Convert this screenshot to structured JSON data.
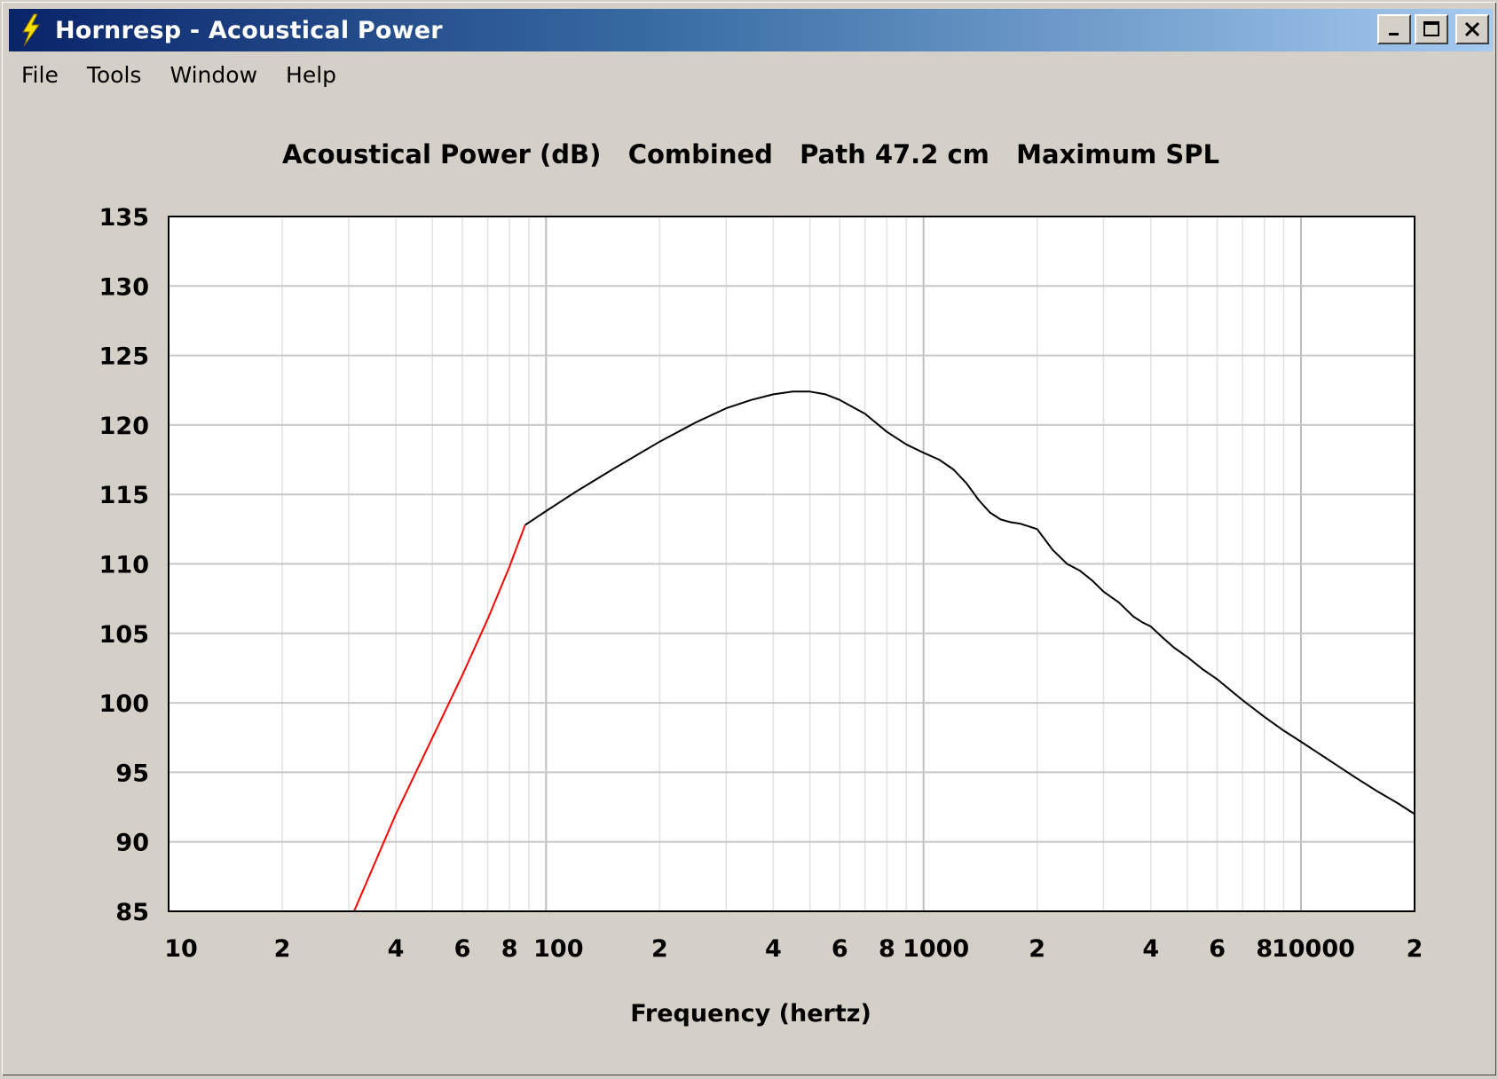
{
  "window": {
    "title": "Hornresp - Acoustical Power",
    "app_icon": "lightning-icon",
    "buttons": {
      "minimize": "minimize-icon",
      "maximize": "maximize-icon",
      "close": "close-icon"
    }
  },
  "menu": {
    "items": [
      "File",
      "Tools",
      "Window",
      "Help"
    ]
  },
  "chart_data": {
    "type": "line",
    "title": "Acoustical Power (dB)   Combined   Path 47.2 cm   Maximum SPL",
    "xlabel": "Frequency (hertz)",
    "ylabel": "",
    "xscale": "log",
    "xlim": [
      10,
      20000
    ],
    "ylim": [
      85,
      135
    ],
    "ytick_labels": [
      "135",
      "130",
      "125",
      "120",
      "115",
      "110",
      "105",
      "100",
      "95",
      "90",
      "85"
    ],
    "ytick_values": [
      135,
      130,
      125,
      120,
      115,
      110,
      105,
      100,
      95,
      90,
      85
    ],
    "xtick_labels": [
      "10",
      "2",
      "4",
      "6",
      "8",
      "100",
      "2",
      "4",
      "6",
      "8",
      "1000",
      "2",
      "4",
      "6",
      "8",
      "10000",
      "2"
    ],
    "xtick_values": [
      10,
      20,
      40,
      60,
      80,
      100,
      200,
      400,
      600,
      800,
      1000,
      2000,
      4000,
      6000,
      8000,
      10000,
      20000
    ],
    "grid": true,
    "series": [
      {
        "color": "#ff0000",
        "x": [
          31,
          40,
          50,
          60,
          70,
          80,
          88
        ],
        "y": [
          85,
          92,
          97.5,
          102,
          106,
          109.8,
          112.8
        ]
      },
      {
        "color": "#000000",
        "x": [
          88,
          100,
          120,
          150,
          200,
          250,
          300,
          350,
          400,
          450,
          500,
          550,
          600,
          700,
          800,
          900,
          1000,
          1100,
          1200,
          1300,
          1400,
          1500,
          1600,
          1700,
          1800,
          1900,
          2000,
          2200,
          2400,
          2600,
          2800,
          3000,
          3300,
          3600,
          3800,
          4000,
          4300,
          4600,
          5000,
          5500,
          6000,
          7000,
          8000,
          9000,
          10000,
          12000,
          14000,
          16000,
          18000,
          20000
        ],
        "y": [
          112.8,
          113.8,
          115.2,
          116.8,
          118.8,
          120.2,
          121.2,
          121.8,
          122.2,
          122.4,
          122.4,
          122.2,
          121.8,
          120.8,
          119.5,
          118.6,
          118.0,
          117.5,
          116.8,
          115.8,
          114.6,
          113.7,
          113.2,
          113.0,
          112.9,
          112.7,
          112.5,
          111.0,
          110.0,
          109.5,
          108.8,
          108.0,
          107.2,
          106.2,
          105.8,
          105.5,
          104.7,
          104.0,
          103.3,
          102.4,
          101.7,
          100.2,
          99.0,
          98.0,
          97.2,
          95.8,
          94.6,
          93.6,
          92.8,
          92.0
        ]
      }
    ]
  }
}
